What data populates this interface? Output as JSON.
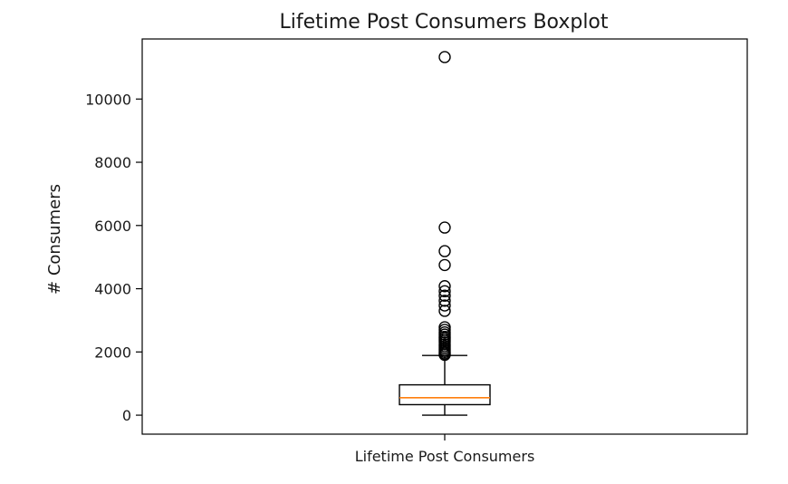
{
  "chart_data": {
    "type": "boxplot",
    "title": "Lifetime Post Consumers Boxplot",
    "xlabel": "",
    "ylabel": "# Consumers",
    "categories": [
      "Lifetime Post Consumers"
    ],
    "ylim": [
      -600,
      11900
    ],
    "yticks": [
      0,
      2000,
      4000,
      6000,
      8000,
      10000
    ],
    "grid": false,
    "series": [
      {
        "whisker_low": 0,
        "q1": 333,
        "median": 551,
        "q3": 960,
        "whisker_high": 1890,
        "outliers": [
          11328,
          5934,
          5189,
          4750,
          4080,
          3920,
          3780,
          3620,
          3470,
          3300,
          2780,
          2700,
          2620,
          2550,
          2480,
          2420,
          2360,
          2300,
          2240,
          2180,
          2120,
          2060,
          2000,
          1950,
          1910
        ]
      }
    ],
    "colors": {
      "box": "#000000",
      "median": "#ff7f0e",
      "outlier": "#000000"
    }
  }
}
